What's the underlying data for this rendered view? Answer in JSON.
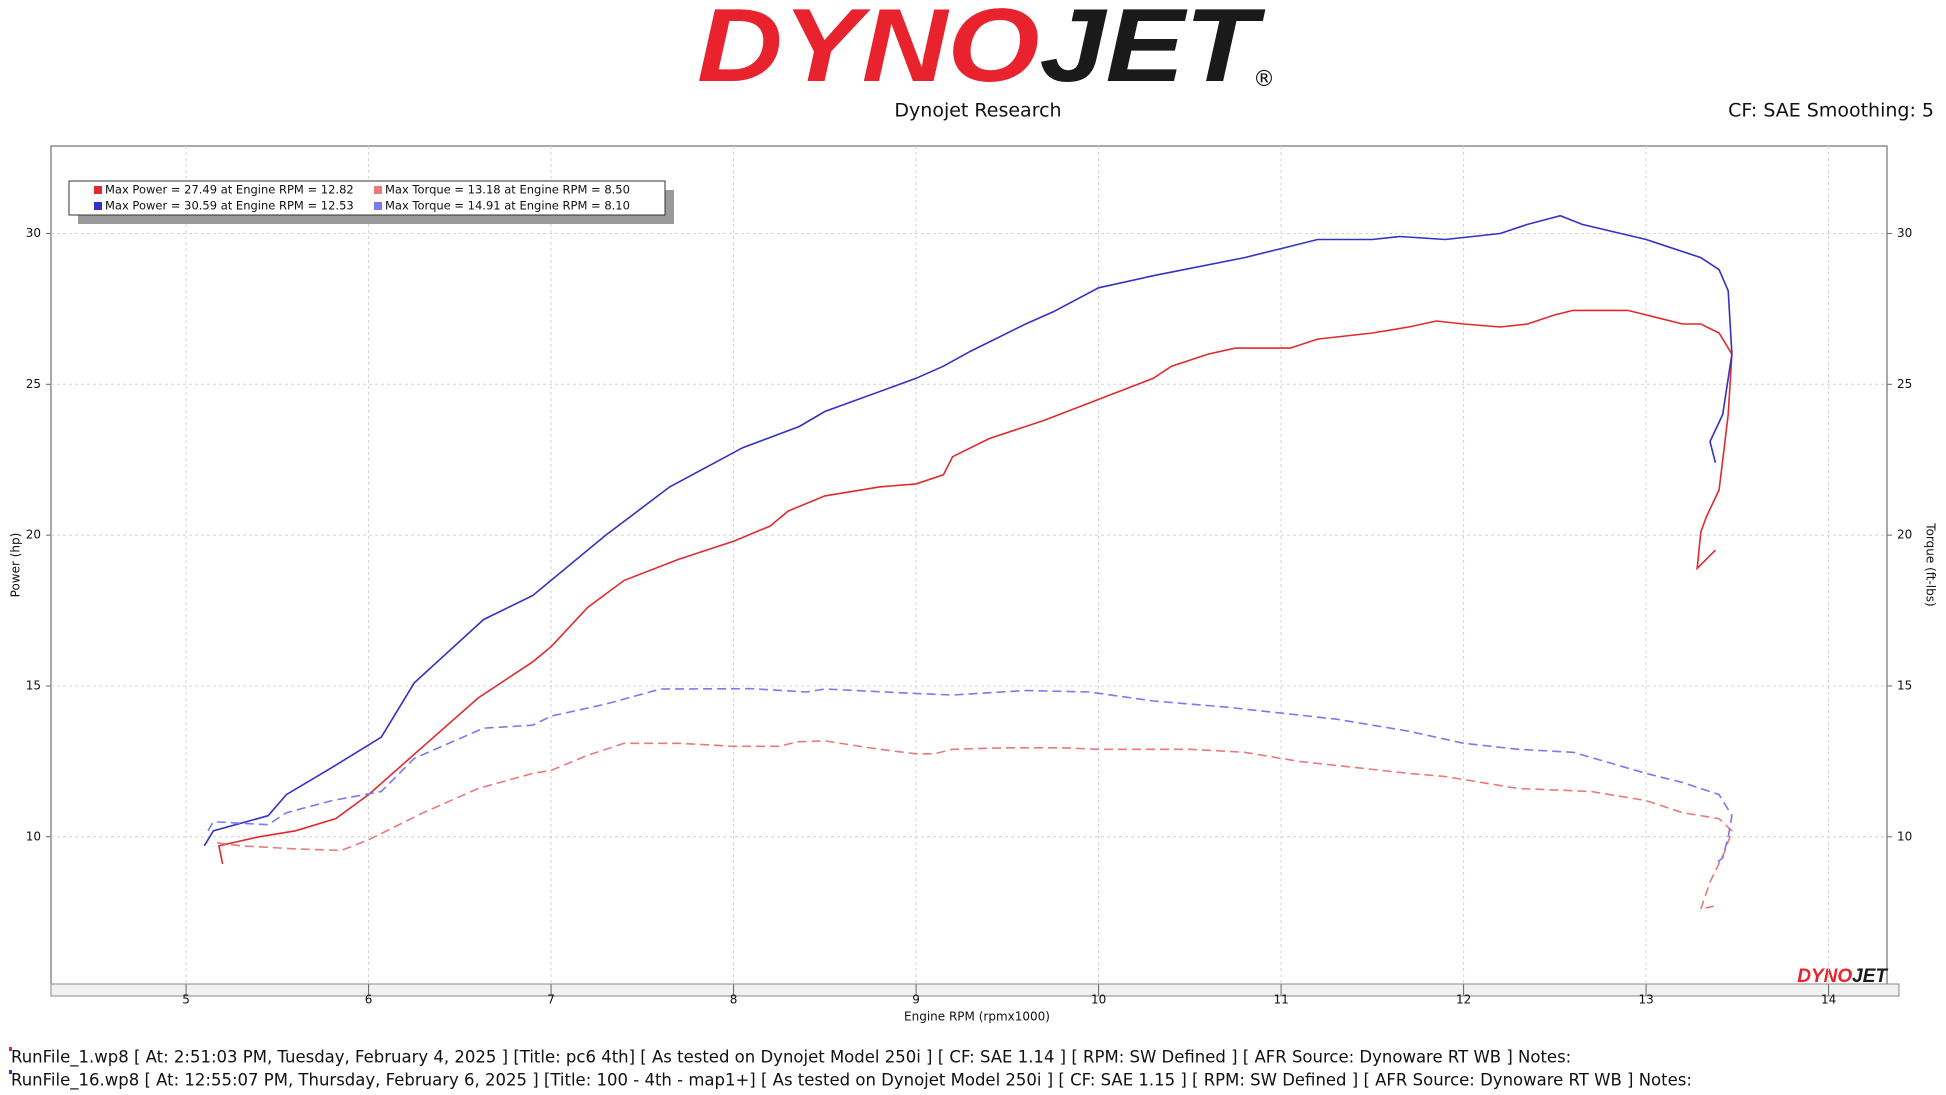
{
  "chart_data": {
    "type": "line",
    "logo": {
      "part1": "DYNO",
      "part2": "JET",
      "mark": "®"
    },
    "subtitle": "Dynojet Research",
    "corner_note": "CF: SAE Smoothing: 5",
    "xlabel": "Engine RPM (rpmx1000)",
    "ylabel": "Power (hp)",
    "y2label": "Torque (ft-lbs)",
    "xlim": [
      4.26,
      14.32
    ],
    "ylim": [
      5.12,
      32.9
    ],
    "y2lim": [
      5.12,
      32.9
    ],
    "xticks": [
      5,
      6,
      7,
      8,
      9,
      10,
      11,
      12,
      13,
      14
    ],
    "yticks": [
      10,
      15,
      20,
      25,
      30
    ],
    "y2ticks": [
      10,
      15,
      20,
      25,
      30
    ],
    "grid": true,
    "legend": "upper left",
    "series": [
      {
        "name": "Max Power = 27.49 at Engine RPM = 12.82",
        "color": "#e02a2e",
        "dash": false,
        "axis": "y",
        "x": [
          5.2,
          5.18,
          5.4,
          5.6,
          5.82,
          6.0,
          6.3,
          6.6,
          6.9,
          7.0,
          7.2,
          7.4,
          7.7,
          8.0,
          8.2,
          8.3,
          8.5,
          8.8,
          9.0,
          9.15,
          9.2,
          9.4,
          9.7,
          10.0,
          10.3,
          10.4,
          10.6,
          10.75,
          11.05,
          11.2,
          11.5,
          11.7,
          11.85,
          12.0,
          12.2,
          12.35,
          12.5,
          12.6,
          12.9,
          13.0,
          13.2,
          13.3,
          13.4,
          13.47,
          13.45,
          13.4,
          13.33,
          13.3,
          13.28,
          13.38
        ],
        "values": [
          9.1,
          9.7,
          10.0,
          10.2,
          10.6,
          11.4,
          13.0,
          14.6,
          15.8,
          16.3,
          17.6,
          18.5,
          19.2,
          19.8,
          20.3,
          20.8,
          21.3,
          21.6,
          21.7,
          22.0,
          22.6,
          23.2,
          23.8,
          24.5,
          25.2,
          25.6,
          26.0,
          26.2,
          26.2,
          26.5,
          26.7,
          26.9,
          27.1,
          27.0,
          26.9,
          27.0,
          27.3,
          27.45,
          27.45,
          27.3,
          27.0,
          27.0,
          26.7,
          26.0,
          24.0,
          21.5,
          20.6,
          20.1,
          18.9,
          19.5
        ]
      },
      {
        "name": "Max Power = 30.59 at Engine RPM = 12.53",
        "color": "#3232c4",
        "dash": false,
        "axis": "y",
        "x": [
          5.1,
          5.15,
          5.45,
          5.55,
          5.8,
          6.07,
          6.25,
          6.63,
          6.9,
          7.3,
          7.65,
          8.05,
          8.36,
          8.5,
          9.0,
          9.15,
          9.3,
          9.6,
          9.75,
          10.0,
          10.3,
          10.8,
          11.0,
          11.2,
          11.5,
          11.65,
          11.9,
          12.2,
          12.35,
          12.53,
          12.65,
          13.0,
          13.3,
          13.4,
          13.45,
          13.47,
          13.42,
          13.35,
          13.38
        ],
        "values": [
          9.7,
          10.2,
          10.7,
          11.4,
          12.3,
          13.3,
          15.1,
          17.2,
          18.0,
          20.0,
          21.6,
          22.9,
          23.6,
          24.1,
          25.2,
          25.6,
          26.1,
          27.0,
          27.4,
          28.2,
          28.6,
          29.2,
          29.5,
          29.8,
          29.8,
          29.9,
          29.8,
          30.0,
          30.3,
          30.59,
          30.3,
          29.8,
          29.2,
          28.8,
          28.1,
          26.0,
          24.0,
          23.1,
          22.4
        ]
      },
      {
        "name": "Max Torque = 13.18 at Engine RPM = 8.50",
        "color": "#e87a7a",
        "dash": true,
        "axis": "y2",
        "x": [
          5.17,
          5.3,
          5.6,
          5.85,
          6.0,
          6.3,
          6.6,
          6.9,
          7.0,
          7.2,
          7.4,
          7.7,
          8.0,
          8.25,
          8.35,
          8.5,
          8.8,
          9.0,
          9.1,
          9.2,
          9.5,
          9.8,
          10.0,
          10.5,
          10.8,
          11.1,
          11.4,
          11.7,
          11.9,
          12.3,
          12.7,
          13.0,
          13.2,
          13.4,
          13.47,
          13.43,
          13.35,
          13.3,
          13.37
        ],
        "values": [
          9.8,
          9.7,
          9.6,
          9.55,
          9.9,
          10.8,
          11.6,
          12.1,
          12.2,
          12.7,
          13.1,
          13.1,
          13.0,
          13.0,
          13.15,
          13.18,
          12.9,
          12.75,
          12.75,
          12.9,
          12.95,
          12.95,
          12.9,
          12.9,
          12.8,
          12.5,
          12.3,
          12.1,
          12.0,
          11.6,
          11.5,
          11.2,
          10.8,
          10.6,
          10.2,
          9.5,
          8.5,
          7.6,
          7.7
        ]
      },
      {
        "name": "Max Torque = 14.91 at Engine RPM = 8.10",
        "color": "#7a7aee",
        "dash": true,
        "axis": "y2",
        "x": [
          5.12,
          5.15,
          5.45,
          5.55,
          5.8,
          6.07,
          6.25,
          6.63,
          6.9,
          7.0,
          7.3,
          7.6,
          8.1,
          8.4,
          8.5,
          9.0,
          9.2,
          9.6,
          9.95,
          10.3,
          10.7,
          11.0,
          11.3,
          11.7,
          12.0,
          12.3,
          12.6,
          13.0,
          13.2,
          13.4,
          13.47,
          13.45,
          13.42,
          13.38
        ],
        "values": [
          10.2,
          10.5,
          10.4,
          10.8,
          11.2,
          11.5,
          12.6,
          13.6,
          13.7,
          14.0,
          14.4,
          14.9,
          14.91,
          14.8,
          14.9,
          14.75,
          14.7,
          14.85,
          14.8,
          14.5,
          14.3,
          14.1,
          13.9,
          13.5,
          13.1,
          12.9,
          12.8,
          12.1,
          11.8,
          11.4,
          10.7,
          10.0,
          9.3,
          9.1
        ]
      }
    ],
    "footer": [
      "RunFile_1.wp8 [ At: 2:51:03 PM, Tuesday, February 4, 2025 ] [Title: pc6 4th]  [ As tested on Dynojet Model 250i ] [ CF: SAE 1.14 ] [ RPM: SW Defined ] [ AFR Source: Dynoware RT WB ] Notes:",
      "RunFile_16.wp8 [ At: 12:55:07 PM, Thursday, February 6, 2025 ] [Title: 100 - 4th - map1+]  [ As tested on Dynojet Model 250i ] [ CF: SAE 1.15 ] [ RPM: SW Defined ] [ AFR Source: Dynoware RT WB ] Notes:"
    ]
  }
}
